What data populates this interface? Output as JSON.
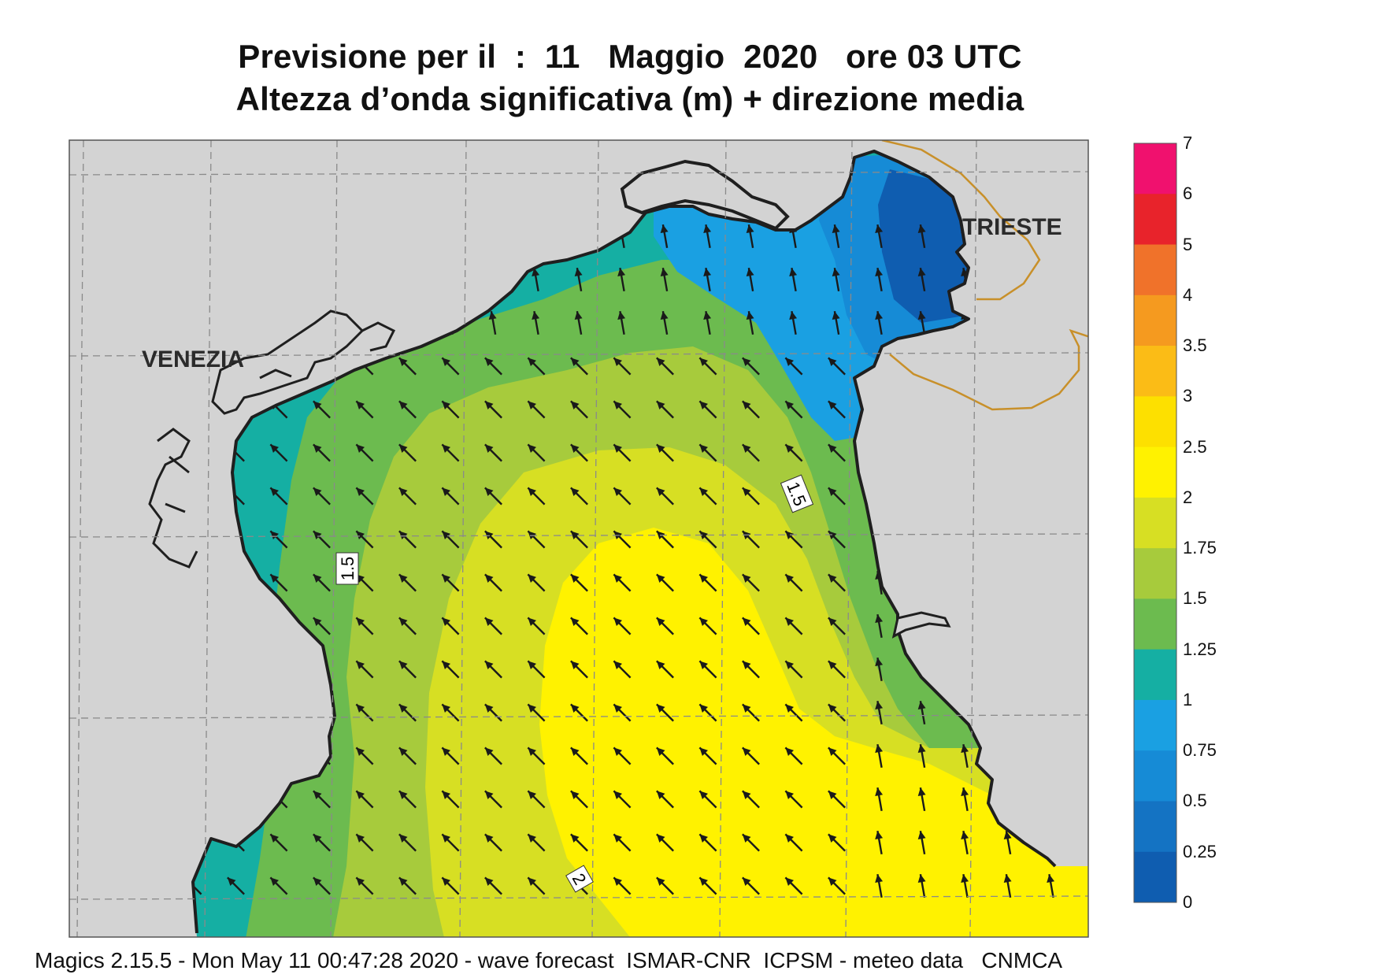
{
  "title": {
    "line1": "Previsione per il  :  11   Maggio  2020   ore 03 UTC",
    "line2": "Altezza d’onda significativa (m) + direzione media"
  },
  "cities": {
    "venezia": "VENEZIA",
    "trieste": "TRIESTE"
  },
  "contour_labels": [
    "1.5",
    "1.5",
    "2"
  ],
  "legend": {
    "labels": [
      "7",
      "6",
      "5",
      "4",
      "3.5",
      "3",
      "2.5",
      "2",
      "1.75",
      "1.5",
      "1.25",
      "1",
      "0.75",
      "0.5",
      "0.25",
      "0"
    ],
    "colors": [
      "#f0116e",
      "#e8232b",
      "#f0722a",
      "#f59a1f",
      "#fbbc16",
      "#fde000",
      "#fff200",
      "#d7df23",
      "#a7cb3c",
      "#6cbb4f",
      "#15afa3",
      "#1aa0e2",
      "#168bd6",
      "#1473c3",
      "#0f5db0"
    ]
  },
  "colors": {
    "land": "#d3d3d3",
    "coast": "#1f1f1f",
    "border": "#c8902a",
    "gridline": "#8a8a8a",
    "arrow": "#1a1a1a"
  },
  "footer": "Magics 2.15.5 - Mon May 11 00:47:28 2020 - wave forecast  ISMAR-CNR  ICPSM - meteo data   CNMCA"
}
